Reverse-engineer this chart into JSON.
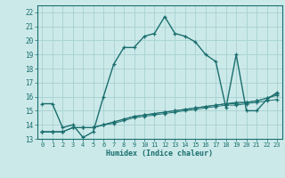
{
  "title": "",
  "xlabel": "Humidex (Indice chaleur)",
  "background_color": "#cce9e9",
  "grid_color": "#aad4d4",
  "line_color": "#1a6e6e",
  "xlim": [
    -0.5,
    23.5
  ],
  "ylim": [
    13,
    22.5
  ],
  "yticks": [
    13,
    14,
    15,
    16,
    17,
    18,
    19,
    20,
    21,
    22
  ],
  "xticks": [
    0,
    1,
    2,
    3,
    4,
    5,
    6,
    7,
    8,
    9,
    10,
    11,
    12,
    13,
    14,
    15,
    16,
    17,
    18,
    19,
    20,
    21,
    22,
    23
  ],
  "series": [
    [
      15.5,
      15.5,
      13.8,
      14.0,
      13.1,
      13.5,
      16.0,
      18.3,
      19.5,
      19.5,
      20.3,
      20.5,
      21.7,
      20.5,
      20.3,
      19.9,
      19.0,
      18.5,
      15.2,
      19.0,
      15.0,
      15.0,
      15.8,
      16.3
    ],
    [
      13.5,
      13.5,
      13.5,
      13.8,
      13.8,
      13.8,
      14.0,
      14.1,
      14.3,
      14.5,
      14.6,
      14.7,
      14.8,
      14.9,
      15.0,
      15.1,
      15.2,
      15.3,
      15.4,
      15.4,
      15.5,
      15.6,
      15.7,
      15.8
    ],
    [
      13.5,
      13.5,
      13.5,
      13.8,
      13.8,
      13.8,
      14.0,
      14.2,
      14.4,
      14.6,
      14.7,
      14.8,
      14.9,
      15.0,
      15.1,
      15.2,
      15.3,
      15.4,
      15.5,
      15.5,
      15.6,
      15.7,
      15.9,
      16.1
    ],
    [
      13.5,
      13.5,
      13.5,
      13.8,
      13.8,
      13.8,
      14.0,
      14.2,
      14.4,
      14.6,
      14.7,
      14.8,
      14.9,
      15.0,
      15.1,
      15.2,
      15.3,
      15.4,
      15.5,
      15.6,
      15.6,
      15.7,
      15.9,
      16.2
    ]
  ]
}
